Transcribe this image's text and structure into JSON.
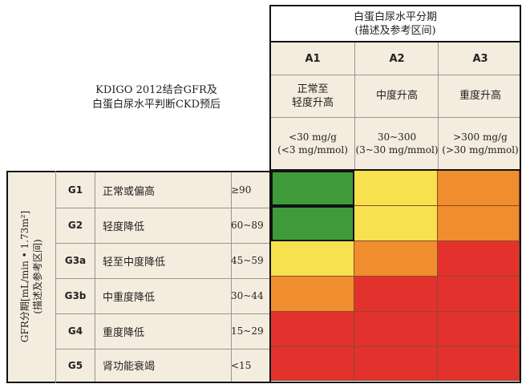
{
  "intro": {
    "line1": "KDIGO 2012结合GFR及",
    "line2": "白蛋白尿水平判断CKD预后"
  },
  "albuminuria": {
    "title_line1": "白蛋白尿水平分期",
    "title_line2": "(描述及参考区间)",
    "categories": [
      {
        "code": "A1",
        "desc_line1": "正常至",
        "desc_line2": "轻度升高",
        "range_line1": "<30 mg/g",
        "range_line2": "(<3 mg/mmol)"
      },
      {
        "code": "A2",
        "desc_line1": "中度升高",
        "desc_line2": "",
        "range_line1": "30~300",
        "range_line2": "(3~30 mg/mmol)"
      },
      {
        "code": "A3",
        "desc_line1": "重度升高",
        "desc_line2": "",
        "range_line1": ">300 mg/g",
        "range_line2": "(>30 mg/mmol)"
      }
    ]
  },
  "gfr": {
    "side_line1": "GFR分期[mL/min • 1.73m²]",
    "side_line2": "(描述及参考区间)",
    "stages": [
      {
        "code": "G1",
        "desc": "正常或偏高",
        "range": "≥90"
      },
      {
        "code": "G2",
        "desc": "轻度降低",
        "range": "60~89"
      },
      {
        "code": "G3a",
        "desc": "轻至中度降低",
        "range": "45~59"
      },
      {
        "code": "G3b",
        "desc": "中重度降低",
        "range": "30~44"
      },
      {
        "code": "G4",
        "desc": "重度降低",
        "range": "15~29"
      },
      {
        "code": "G5",
        "desc": "肾功能衰竭",
        "range": "<15"
      }
    ]
  },
  "risk_colors": {
    "green": "#3f9a3a",
    "yellow": "#f7e14e",
    "orange": "#f08d2e",
    "red": "#e3322d"
  },
  "risk_grid": [
    [
      "green",
      "yellow",
      "orange"
    ],
    [
      "green",
      "yellow",
      "orange"
    ],
    [
      "yellow",
      "orange",
      "red"
    ],
    [
      "orange",
      "red",
      "red"
    ],
    [
      "red",
      "red",
      "red"
    ],
    [
      "red",
      "red",
      "red"
    ]
  ]
}
